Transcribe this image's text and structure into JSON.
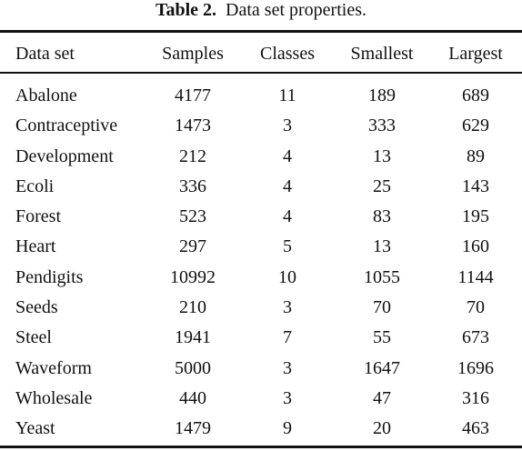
{
  "caption": {
    "label": "Table 2.",
    "text": "Data set properties."
  },
  "table": {
    "headers": [
      "Data set",
      "Samples",
      "Classes",
      "Smallest",
      "Largest"
    ],
    "rows": [
      [
        "Abalone",
        "4177",
        "11",
        "189",
        "689"
      ],
      [
        "Contraceptive",
        "1473",
        "3",
        "333",
        "629"
      ],
      [
        "Development",
        "212",
        "4",
        "13",
        "89"
      ],
      [
        "Ecoli",
        "336",
        "4",
        "25",
        "143"
      ],
      [
        "Forest",
        "523",
        "4",
        "83",
        "195"
      ],
      [
        "Heart",
        "297",
        "5",
        "13",
        "160"
      ],
      [
        "Pendigits",
        "10992",
        "10",
        "1055",
        "1144"
      ],
      [
        "Seeds",
        "210",
        "3",
        "70",
        "70"
      ],
      [
        "Steel",
        "1941",
        "7",
        "55",
        "673"
      ],
      [
        "Waveform",
        "5000",
        "3",
        "1647",
        "1696"
      ],
      [
        "Wholesale",
        "440",
        "3",
        "47",
        "316"
      ],
      [
        "Yeast",
        "1479",
        "9",
        "20",
        "463"
      ]
    ]
  }
}
